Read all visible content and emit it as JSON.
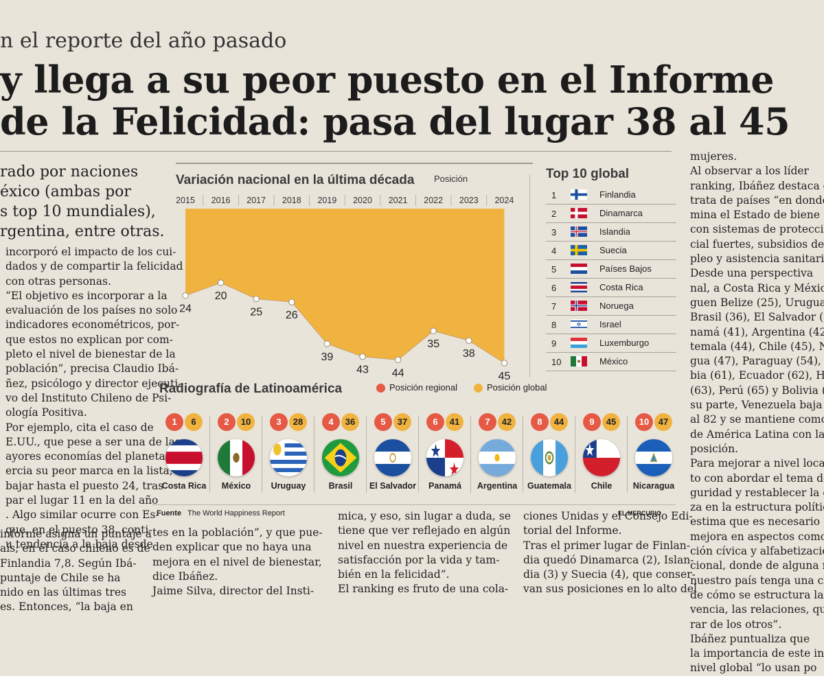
{
  "headline": {
    "kicker": "n el reporte del año pasado",
    "line1": "y llega a su peor puesto en el Informe",
    "line2": "de la Felicidad: pasa del lugar 38 al 45"
  },
  "left_column": {
    "lead": [
      "rado por naciones",
      "éxico (ambas por",
      "s top 10 mundiales),",
      "rgentina, entre otras."
    ],
    "lines": [
      "incorporó el impacto de los cui-",
      "dados y de compartir la felicidad",
      "con otras personas.",
      "“El objetivo es incorporar a la",
      "evaluación de los países no solo",
      "indicadores econométricos, por-",
      "que estos no explican por com-",
      "pleto el nivel de bienestar de la",
      "población”, precisa Claudio Ibá-",
      "ñez, psicólogo y director ejecuti-",
      "vo del Instituto Chileno de Psi-",
      "ología Positiva.",
      "Por ejemplo, cita el caso de",
      "E.UU., que pese a ser una de las",
      "ayores economías del planeta,",
      "ercia su peor marca en la lista,",
      "bajar hasta el puesto 24, tras",
      "par el lugar 11 en la del año",
      ". Algo similar ocurre con Es-",
      "que, en el puesto 38, conti-",
      "u tendencia a la baja desde"
    ],
    "bottom_lines": [
      "informe asigna un puntaje a",
      "aís; en el caso chileno es de",
      "Finlandia 7,8. Según Ibá-",
      "puntaje de Chile se ha",
      "nido en las últimas tres",
      "es. Entonces, “la baja en"
    ]
  },
  "infographic": {
    "variation": {
      "title": "Variación nacional en la última década",
      "unit": "Posición"
    },
    "top10": {
      "title": "Top 10 global",
      "rows": [
        {
          "n": "1",
          "name": "Finlandia",
          "flag": "finland-flag"
        },
        {
          "n": "2",
          "name": "Dinamarca",
          "flag": "denmark-flag"
        },
        {
          "n": "3",
          "name": "Islandia",
          "flag": "iceland-flag"
        },
        {
          "n": "4",
          "name": "Suecia",
          "flag": "sweden-flag"
        },
        {
          "n": "5",
          "name": "Países Bajos",
          "flag": "netherlands-flag"
        },
        {
          "n": "6",
          "name": "Costa Rica",
          "flag": "costa-rica-flag"
        },
        {
          "n": "7",
          "name": "Noruega",
          "flag": "norway-flag"
        },
        {
          "n": "8",
          "name": "Israel",
          "flag": "israel-flag"
        },
        {
          "n": "9",
          "name": "Luxemburgo",
          "flag": "luxembourg-flag"
        },
        {
          "n": "10",
          "name": "México",
          "flag": "mexico-flag"
        }
      ]
    },
    "latam": {
      "title": "Radiografía de Latinoamérica",
      "legend_regional": "Posición regional",
      "legend_global": "Posición global",
      "countries": [
        {
          "name": "Costa Rica",
          "regional": "1",
          "global": "6",
          "flag": "costa-rica-flag"
        },
        {
          "name": "México",
          "regional": "2",
          "global": "10",
          "flag": "mexico-flag"
        },
        {
          "name": "Uruguay",
          "regional": "3",
          "global": "28",
          "flag": "uruguay-flag"
        },
        {
          "name": "Brasil",
          "regional": "4",
          "global": "36",
          "flag": "brazil-flag"
        },
        {
          "name": "El Salvador",
          "regional": "5",
          "global": "37",
          "flag": "el-salvador-flag"
        },
        {
          "name": "Panamá",
          "regional": "6",
          "global": "41",
          "flag": "panama-flag"
        },
        {
          "name": "Argentina",
          "regional": "7",
          "global": "42",
          "flag": "argentina-flag"
        },
        {
          "name": "Guatemala",
          "regional": "8",
          "global": "44",
          "flag": "guatemala-flag"
        },
        {
          "name": "Chile",
          "regional": "9",
          "global": "45",
          "flag": "chile-flag"
        },
        {
          "name": "Nicaragua",
          "regional": "10",
          "global": "47",
          "flag": "nicaragua-flag"
        }
      ]
    },
    "source_label": "Fuente",
    "source": "The World Happiness Report",
    "credit": "EL MERCURIO",
    "colors": {
      "area": "#f0b340",
      "regional": "#e55945",
      "global": "#f0b340"
    }
  },
  "chart_data": {
    "type": "area",
    "title": "Variación nacional en la última década",
    "ylabel": "Posición",
    "x": [
      "2015",
      "2016",
      "2017",
      "2018",
      "2019",
      "2020",
      "2021",
      "2022",
      "2023",
      "2024"
    ],
    "values": [
      24,
      20,
      25,
      26,
      39,
      43,
      44,
      35,
      38,
      45
    ],
    "y_inverted": true,
    "ylim": [
      20,
      45
    ],
    "grid": false
  },
  "right_column": {
    "lines": [
      "mujeres.",
      "Al observar a los líder",
      "ranking, Ibáñez destaca q",
      "trata de países “en donde p",
      "mina el Estado de biene",
      "con sistemas de protecció",
      "cial fuertes, subsidios de d",
      "pleo y asistencia sanitaria.",
      "Desde una perspectiva",
      "nal, a Costa Rica y México",
      "guen Belize (25), Uruguay",
      "Brasil (36), El Salvador (37",
      "namá (41), Argentina (42),",
      "temala (44), Chile (45), N",
      "gua (47), Paraguay (54), C",
      "bia (61), Ecuador (62), Hon",
      "(63), Perú (65) y Bolivia (74",
      "su parte, Venezuela baja d",
      "al 82 y se mantiene como e",
      "de América Latina con la",
      "posición.",
      "Para mejorar a nivel loca",
      "to con abordar el tema de",
      "guridad y restablecer la co",
      "za en la estructura política",
      "estima que es necesario",
      "mejora en aspectos como e",
      "ción cívica y alfabetización",
      "cional, donde de alguna m",
      "nuestro país tenga una cl",
      "de cómo se estructura la",
      "vencia, las relaciones, que",
      "rar de los otros”.",
      "Ibáñez puntualiza que",
      "la importancia de este info",
      "nivel global “lo usan po"
    ]
  },
  "bottom_columns": {
    "col2": [
      "tes en la población”, y que pue-",
      "den explicar que no haya una",
      "mejora en el nivel de bienestar,",
      "dice Ibáñez.",
      "Jaime Silva, director del Insti-"
    ],
    "col3": [
      "mica, y eso, sin lugar a duda, se",
      "tiene que ver reflejado en algún",
      "nivel en nuestra experiencia de",
      "satisfacción por la vida y tam-",
      "bién en la felicidad”.",
      "El ranking es fruto de una cola-"
    ],
    "col4": [
      "ciones Unidas y el Consejo Edi-",
      "torial del Informe.",
      "Tras el primer lugar de Finlan-",
      "dia quedó Dinamarca (2), Islan-",
      "dia (3) y Suecia (4), que conser-",
      "van sus posiciones en lo alto del"
    ]
  }
}
